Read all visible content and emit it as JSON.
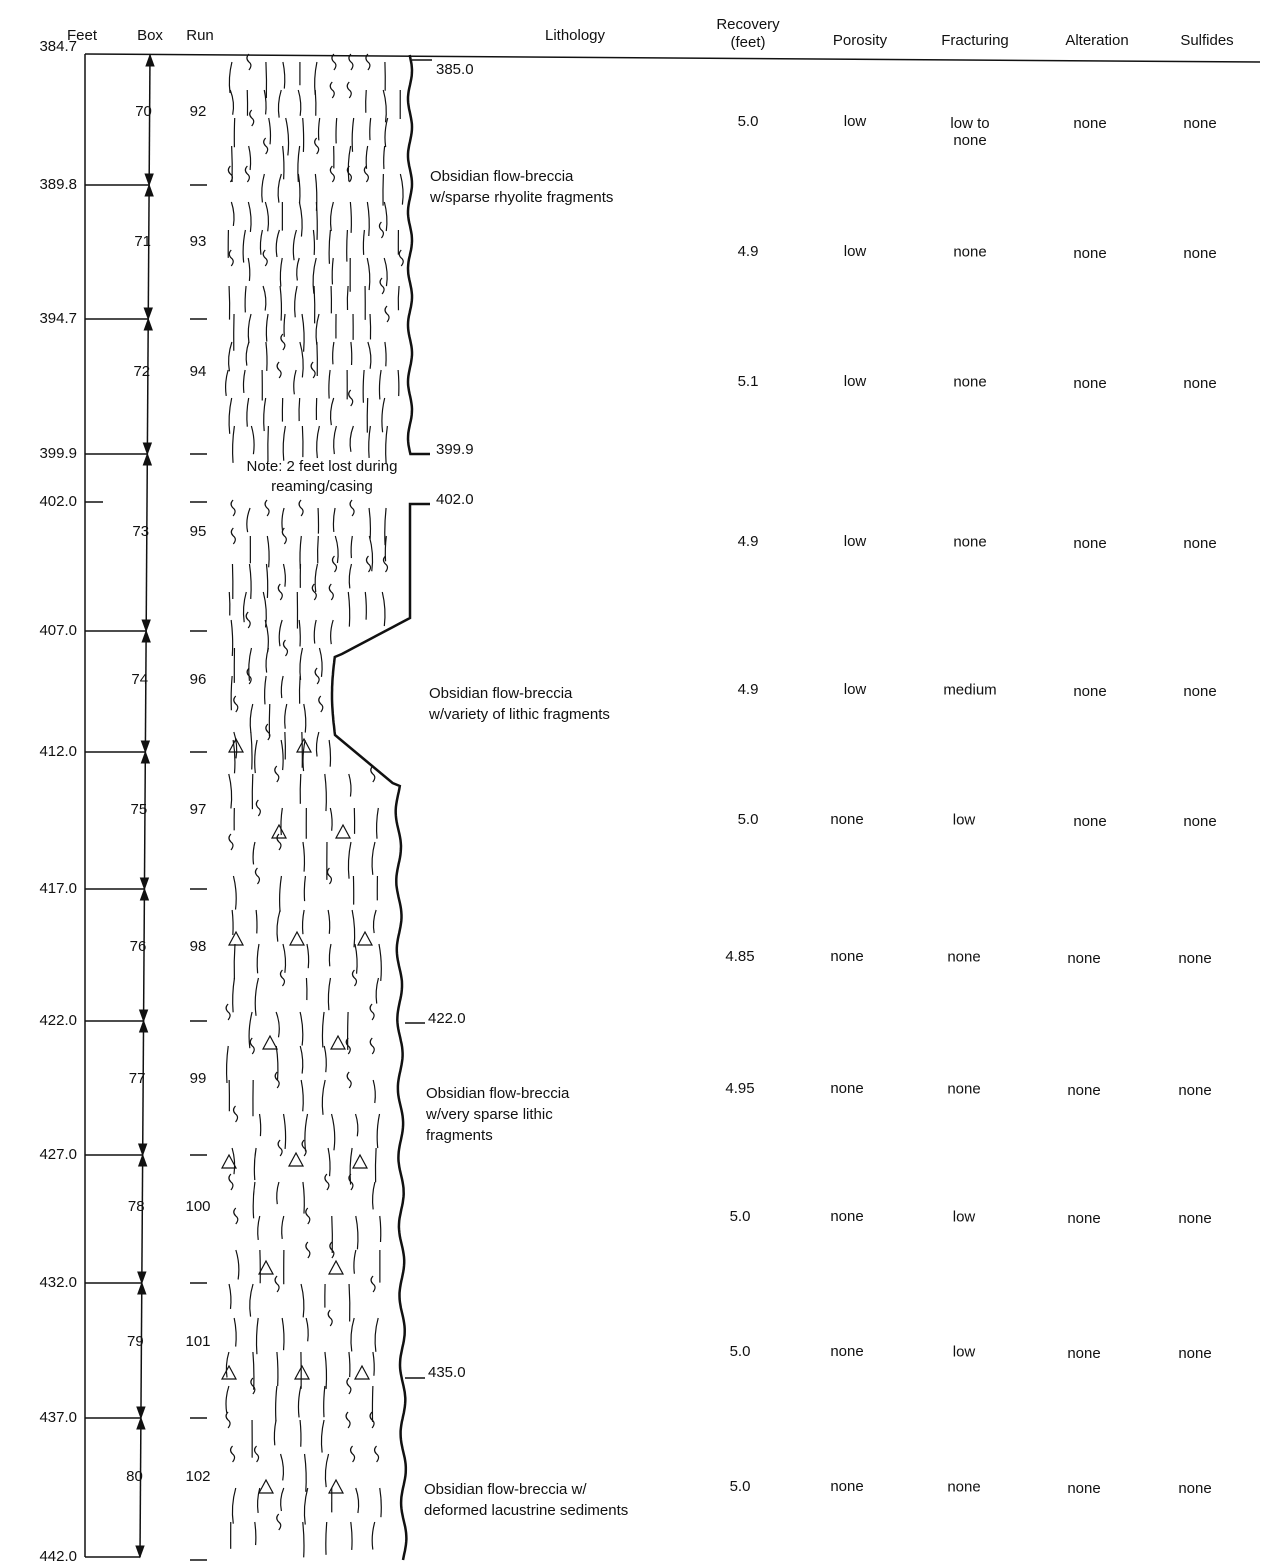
{
  "header": {
    "columns": [
      {
        "lines": [
          "Feet"
        ]
      },
      {
        "lines": [
          "Box"
        ]
      },
      {
        "lines": [
          "Run"
        ]
      },
      {
        "lines": [
          "Lithology"
        ]
      },
      {
        "lines": [
          "Recovery",
          "(feet)"
        ]
      },
      {
        "lines": [
          "Porosity"
        ]
      },
      {
        "lines": [
          "Fracturing"
        ]
      },
      {
        "lines": [
          "Alteration"
        ]
      },
      {
        "lines": [
          "Sulfides"
        ]
      }
    ]
  },
  "depths": [
    "384.7",
    "389.8",
    "394.7",
    "399.9",
    "402.0",
    "407.0",
    "412.0",
    "417.0",
    "422.0",
    "427.0",
    "432.0",
    "437.0",
    "442.0"
  ],
  "core_markers": [
    "385.0",
    "399.9",
    "402.0",
    "422.0",
    "435.0"
  ],
  "note": {
    "lines": [
      "Note: 2 feet lost during",
      "reaming/casing"
    ]
  },
  "lithology": [
    {
      "lines": [
        "Obsidian flow-breccia",
        "w/sparse rhyolite fragments"
      ]
    },
    {
      "lines": [
        "Obsidian flow-breccia",
        "w/variety of lithic fragments"
      ]
    },
    {
      "lines": [
        "Obsidian flow-breccia",
        "w/very sparse lithic",
        "fragments"
      ]
    },
    {
      "lines": [
        "Obsidian flow-breccia w/",
        "deformed lacustrine sediments"
      ]
    }
  ],
  "rows": [
    {
      "box": "70",
      "run": "92",
      "recovery": "5.0",
      "porosity": "low",
      "fracturing": "low to none",
      "alteration": "none",
      "sulfides": "none"
    },
    {
      "box": "71",
      "run": "93",
      "recovery": "4.9",
      "porosity": "low",
      "fracturing": "none",
      "alteration": "none",
      "sulfides": "none"
    },
    {
      "box": "72",
      "run": "94",
      "recovery": "5.1",
      "porosity": "low",
      "fracturing": "none",
      "alteration": "none",
      "sulfides": "none"
    },
    {
      "box": "73",
      "run": "95",
      "recovery": "4.9",
      "porosity": "low",
      "fracturing": "none",
      "alteration": "none",
      "sulfides": "none"
    },
    {
      "box": "74",
      "run": "96",
      "recovery": "4.9",
      "porosity": "low",
      "fracturing": "medium",
      "alteration": "none",
      "sulfides": "none"
    },
    {
      "box": "75",
      "run": "97",
      "recovery": "5.0",
      "porosity": "none",
      "fracturing": "low",
      "alteration": "none",
      "sulfides": "none"
    },
    {
      "box": "76",
      "run": "98",
      "recovery": "4.85",
      "porosity": "none",
      "fracturing": "none",
      "alteration": "none",
      "sulfides": "none"
    },
    {
      "box": "77",
      "run": "99",
      "recovery": "4.95",
      "porosity": "none",
      "fracturing": "none",
      "alteration": "none",
      "sulfides": "none"
    },
    {
      "box": "78",
      "run": "100",
      "recovery": "5.0",
      "porosity": "none",
      "fracturing": "low",
      "alteration": "none",
      "sulfides": "none"
    },
    {
      "box": "79",
      "run": "101",
      "recovery": "5.0",
      "porosity": "none",
      "fracturing": "low",
      "alteration": "none",
      "sulfides": "none"
    },
    {
      "box": "80",
      "run": "102",
      "recovery": "5.0",
      "porosity": "none",
      "fracturing": "none",
      "alteration": "none",
      "sulfides": "none"
    }
  ]
}
